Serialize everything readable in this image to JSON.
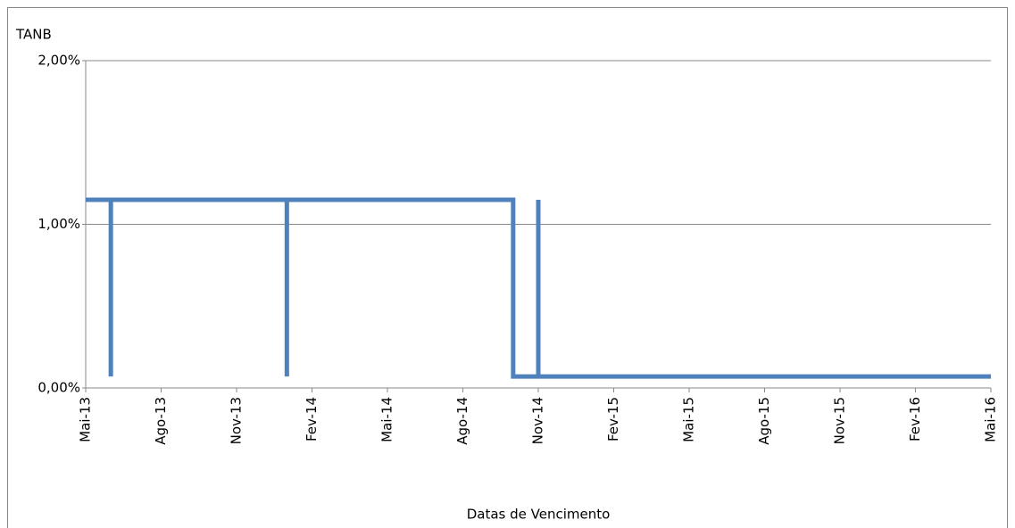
{
  "chart_data": {
    "type": "line",
    "y_label": "TANB",
    "x_label": "Datas de Vencimento",
    "x": [
      "2013-05",
      "2013-06",
      "2013-06",
      "2013-06",
      "2014-01",
      "2014-01",
      "2014-01",
      "2014-10",
      "2014-10",
      "2014-11",
      "2014-11",
      "2014-11",
      "2014-11",
      "2014-11",
      "2016-05"
    ],
    "series": [
      {
        "name": "TANB",
        "color": "#4f81bd",
        "values": [
          1.15,
          1.15,
          0.07,
          1.15,
          1.15,
          0.07,
          1.15,
          1.15,
          0.07,
          0.07,
          1.15,
          0.07,
          1.15,
          0.07,
          0.07
        ]
      }
    ],
    "xlim": [
      "2013-05",
      "2016-05"
    ],
    "xticks": [
      {
        "value": "2013-05",
        "label": "Mai-13"
      },
      {
        "value": "2013-08",
        "label": "Ago-13"
      },
      {
        "value": "2013-11",
        "label": "Nov-13"
      },
      {
        "value": "2014-02",
        "label": "Fev-14"
      },
      {
        "value": "2014-05",
        "label": "Mai-14"
      },
      {
        "value": "2014-08",
        "label": "Ago-14"
      },
      {
        "value": "2014-11",
        "label": "Nov-14"
      },
      {
        "value": "2015-02",
        "label": "Fev-15"
      },
      {
        "value": "2015-05",
        "label": "Mai-15"
      },
      {
        "value": "2015-08",
        "label": "Ago-15"
      },
      {
        "value": "2015-11",
        "label": "Nov-15"
      },
      {
        "value": "2016-02",
        "label": "Fev-16"
      },
      {
        "value": "2016-05",
        "label": "Mai-16"
      }
    ],
    "ylim": [
      0,
      2
    ],
    "yticks": [
      {
        "value": 0,
        "label": "0,00%"
      },
      {
        "value": 1,
        "label": "1,00%"
      },
      {
        "value": 2,
        "label": "2,00%"
      }
    ],
    "grid": true
  }
}
